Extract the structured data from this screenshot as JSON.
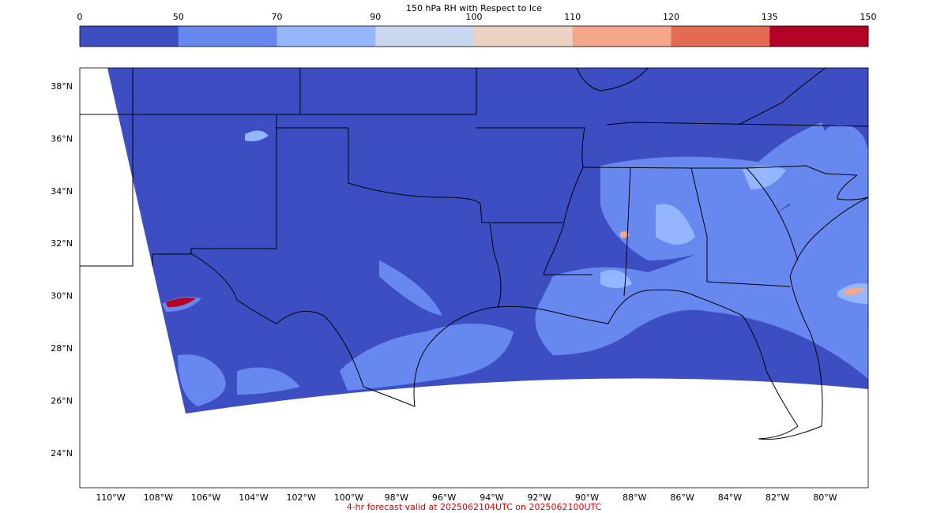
{
  "colorbar": {
    "title": "150 hPa RH with Respect to Ice",
    "boundaries": [
      0,
      50,
      70,
      90,
      100,
      110,
      120,
      135,
      150
    ],
    "colors": [
      "#3c4ec2",
      "#6788ee",
      "#94b6ff",
      "#c9d7f0",
      "#edd1c2",
      "#f7a789",
      "#e36a53",
      "#b40426"
    ]
  },
  "map": {
    "lat_labels": [
      "38°N",
      "36°N",
      "34°N",
      "32°N",
      "30°N",
      "28°N",
      "26°N",
      "24°N"
    ],
    "lon_labels": [
      "110°W",
      "108°W",
      "106°W",
      "104°W",
      "102°W",
      "100°W",
      "98°W",
      "96°W",
      "94°W",
      "92°W",
      "90°W",
      "88°W",
      "86°W",
      "84°W",
      "82°W",
      "80°W"
    ]
  },
  "footer": "4-hr forecast valid at 2025062104UTC on 2025062100UTC"
}
